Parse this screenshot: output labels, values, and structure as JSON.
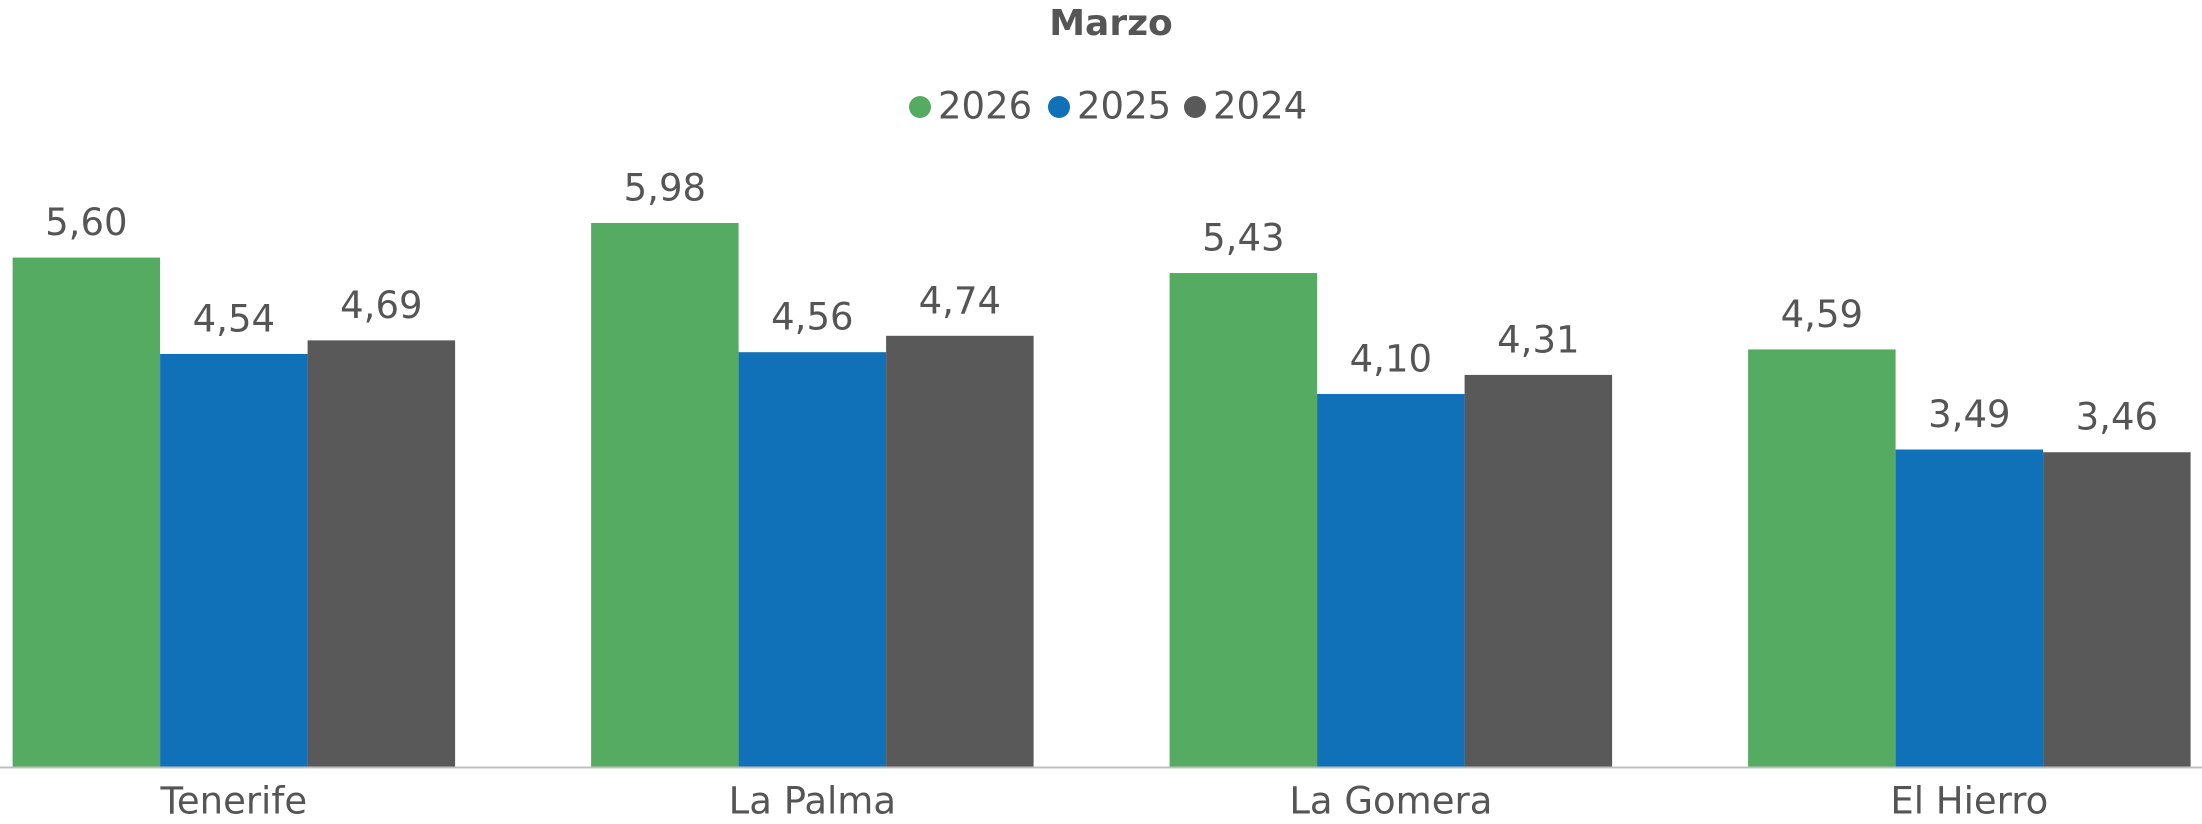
{
  "chart_data": {
    "type": "bar",
    "title": "Marzo",
    "categories": [
      "Tenerife",
      "La Palma",
      "La Gomera",
      "El Hierro"
    ],
    "series": [
      {
        "name": "2026",
        "color": "#55ab62",
        "values": [
          5.6,
          5.98,
          5.43,
          4.59
        ],
        "value_labels": [
          "5,60",
          "5,98",
          "5,43",
          "4,59"
        ]
      },
      {
        "name": "2025",
        "color": "#1070b8",
        "values": [
          4.54,
          4.56,
          4.1,
          3.49
        ],
        "value_labels": [
          "4,54",
          "4,56",
          "4,10",
          "3,49"
        ]
      },
      {
        "name": "2024",
        "color": "#595959",
        "values": [
          4.69,
          4.74,
          4.31,
          3.46
        ],
        "value_labels": [
          "4,69",
          "4,74",
          "4,31",
          "3,46"
        ]
      }
    ],
    "legend": "top"
  }
}
